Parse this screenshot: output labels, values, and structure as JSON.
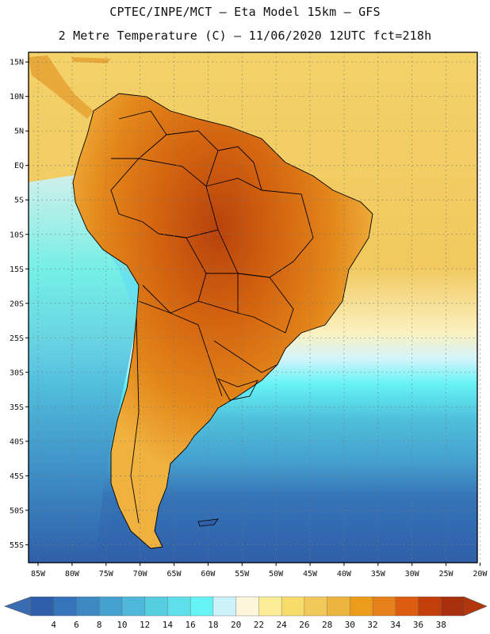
{
  "header": {
    "line1": "CPTEC/INPE/MCT –  Eta Model 15km – GFS",
    "line2": "2 Metre Temperature (C) – 11/06/2020 12UTC fct=218h"
  },
  "axes": {
    "lat_labels": [
      "15N",
      "10N",
      "5N",
      "EQ",
      "5S",
      "10S",
      "15S",
      "20S",
      "25S",
      "30S",
      "35S",
      "40S",
      "45S",
      "50S",
      "55S"
    ],
    "lat_values": [
      15,
      10,
      5,
      0,
      -5,
      -10,
      -15,
      -20,
      -25,
      -30,
      -35,
      -40,
      -45,
      -50,
      -55
    ],
    "lon_labels": [
      "85W",
      "80W",
      "75W",
      "70W",
      "65W",
      "60W",
      "55W",
      "50W",
      "45W",
      "40W",
      "35W",
      "30W",
      "25W",
      "20W"
    ],
    "lon_values": [
      -85,
      -80,
      -75,
      -70,
      -65,
      -60,
      -55,
      -50,
      -45,
      -40,
      -35,
      -30,
      -25,
      -20
    ],
    "lat_range": [
      -57.6,
      16.4
    ],
    "lon_range": [
      -86.4,
      -20.4
    ]
  },
  "colorbar": {
    "labels": [
      "4",
      "6",
      "8",
      "10",
      "12",
      "14",
      "16",
      "18",
      "20",
      "22",
      "24",
      "26",
      "28",
      "30",
      "32",
      "34",
      "36",
      "38"
    ],
    "low_color": "#3a6cb4",
    "high_color": "#b2360c",
    "colors": [
      "#2f5fa8",
      "#3574b8",
      "#3c89c4",
      "#45a1cf",
      "#4fb7d9",
      "#57cde2",
      "#5fdfe9",
      "#66f3f5",
      "#cdf3fa",
      "#fdf5dc",
      "#fbee96",
      "#f6dc6a",
      "#f2c85a",
      "#edb43f",
      "#ed9b1a",
      "#e6801a",
      "#dc5d10",
      "#c23e0a",
      "#a8300c"
    ]
  },
  "map": {
    "ocean_color": "#f4cf63",
    "south_ocean_color": "#2b5a9c",
    "land_hot_color": "#c85d14",
    "land_cool_color": "#4fb9d8"
  }
}
